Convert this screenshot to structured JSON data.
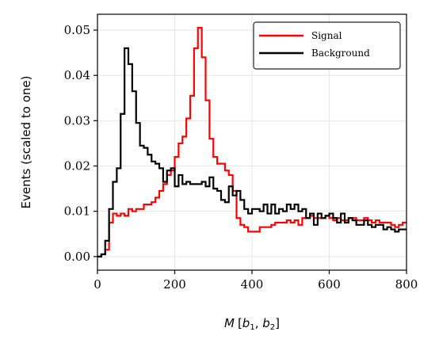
{
  "chart_data": {
    "type": "line",
    "subtype": "step-histogram",
    "title": "",
    "xlabel": "M [b1, b2]",
    "xlabel_parts": {
      "M": "M",
      "open": "[",
      "b1_base": "b",
      "b1_sub": "1",
      "comma": ", ",
      "b2_base": "b",
      "b2_sub": "2",
      "close": "]"
    },
    "ylabel": "Events (scaled to one)",
    "xlim": [
      0,
      800
    ],
    "ylim": [
      -0.003,
      0.0535
    ],
    "xticks": [
      0,
      200,
      400,
      600,
      800
    ],
    "xtick_labels": [
      "0",
      "200",
      "400",
      "600",
      "800"
    ],
    "yticks": [
      0.0,
      0.01,
      0.02,
      0.03,
      0.04,
      0.05
    ],
    "ytick_labels": [
      "0.00",
      "0.01",
      "0.02",
      "0.03",
      "0.04",
      "0.05"
    ],
    "grid": true,
    "legend_position": "top-right",
    "bin_width": 10,
    "bin_edges_start": 0,
    "series": [
      {
        "name": "Signal",
        "color": "#ff0000",
        "values": [
          0.0,
          0.0005,
          0.0015,
          0.0075,
          0.0095,
          0.009,
          0.0095,
          0.009,
          0.0105,
          0.01,
          0.0105,
          0.0105,
          0.0115,
          0.0115,
          0.012,
          0.013,
          0.0145,
          0.016,
          0.018,
          0.019,
          0.022,
          0.025,
          0.0265,
          0.0305,
          0.0355,
          0.046,
          0.0505,
          0.044,
          0.0345,
          0.026,
          0.022,
          0.0205,
          0.0205,
          0.019,
          0.018,
          0.0145,
          0.0085,
          0.007,
          0.0065,
          0.0055,
          0.0055,
          0.0055,
          0.0065,
          0.0065,
          0.0065,
          0.007,
          0.0075,
          0.0075,
          0.0075,
          0.008,
          0.0075,
          0.008,
          0.007,
          0.0085,
          0.0085,
          0.009,
          0.0085,
          0.0085,
          0.0085,
          0.009,
          0.0085,
          0.008,
          0.0085,
          0.008,
          0.008,
          0.0085,
          0.0085,
          0.008,
          0.008,
          0.0085,
          0.008,
          0.0075,
          0.008,
          0.0075,
          0.0075,
          0.0075,
          0.007,
          0.0065,
          0.007,
          0.0075
        ]
      },
      {
        "name": "Background",
        "color": "#000000",
        "values": [
          0.0,
          0.0005,
          0.0035,
          0.0105,
          0.0165,
          0.0195,
          0.0315,
          0.046,
          0.0425,
          0.0365,
          0.0295,
          0.0245,
          0.024,
          0.0225,
          0.021,
          0.0205,
          0.0195,
          0.0165,
          0.019,
          0.0195,
          0.0155,
          0.018,
          0.016,
          0.0165,
          0.016,
          0.016,
          0.016,
          0.0165,
          0.0155,
          0.0175,
          0.015,
          0.0145,
          0.0125,
          0.012,
          0.0155,
          0.0135,
          0.0145,
          0.0125,
          0.0105,
          0.0095,
          0.0105,
          0.0105,
          0.01,
          0.0115,
          0.0095,
          0.0115,
          0.0095,
          0.0105,
          0.01,
          0.0115,
          0.0105,
          0.0115,
          0.01,
          0.0105,
          0.0085,
          0.0095,
          0.007,
          0.0095,
          0.0085,
          0.009,
          0.0095,
          0.0085,
          0.0075,
          0.0095,
          0.0075,
          0.0085,
          0.008,
          0.007,
          0.007,
          0.008,
          0.007,
          0.0065,
          0.007,
          0.007,
          0.006,
          0.0065,
          0.006,
          0.0055,
          0.006,
          0.006
        ]
      }
    ]
  }
}
